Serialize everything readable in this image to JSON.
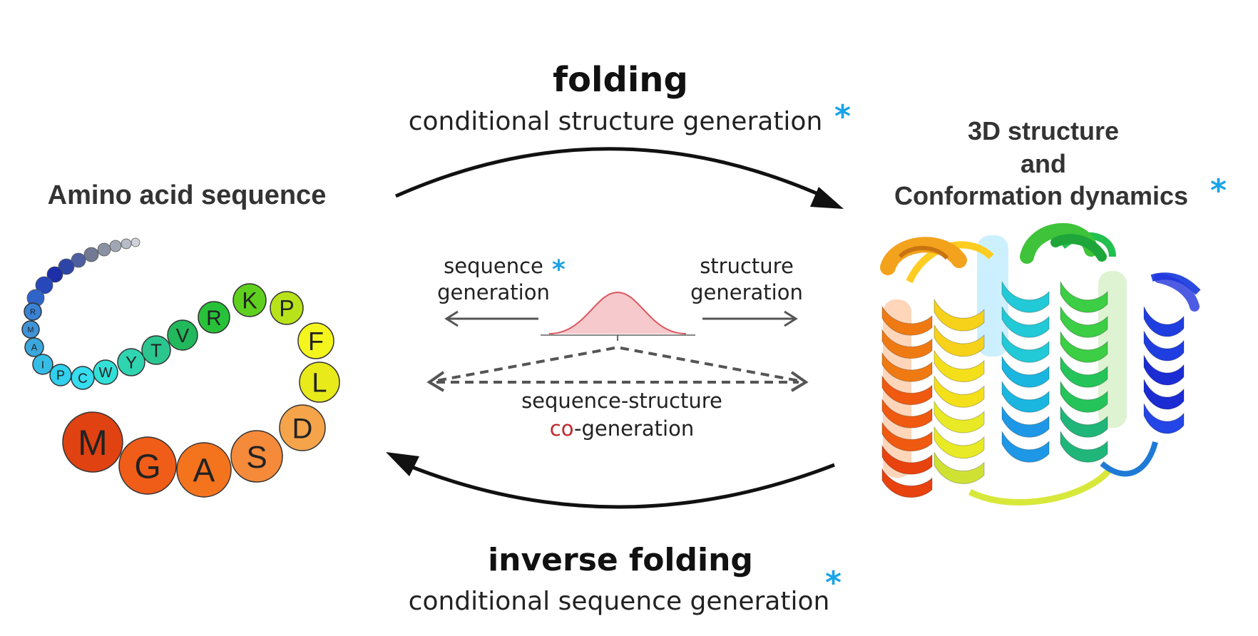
{
  "left_panel": {
    "title": "Amino acid sequence",
    "residues": [
      "R",
      "M",
      "A",
      "I",
      "P",
      "C",
      "W",
      "Y",
      "T",
      "V",
      "R",
      "K",
      "P",
      "F",
      "L",
      "D",
      "S",
      "A",
      "G",
      "M"
    ]
  },
  "right_panel": {
    "title_line1": "3D structure",
    "title_line2": "and",
    "title_line3": "Conformation dynamics",
    "asterisk": "*"
  },
  "top_arrow": {
    "title": "folding",
    "subtitle": "conditional structure generation",
    "asterisk": "*"
  },
  "bottom_arrow": {
    "title": "inverse folding",
    "subtitle": "conditional sequence generation",
    "asterisk": "*"
  },
  "center": {
    "seq_gen_line1": "sequence",
    "seq_gen_asterisk": "*",
    "seq_gen_line2": "generation",
    "struct_gen_line1": "structure",
    "struct_gen_line2": "generation",
    "cogen_line1": "sequence-structure",
    "cogen_prefix": "co",
    "cogen_suffix": "-generation"
  },
  "colors": {
    "asterisk": "#1aa3e8",
    "co_highlight": "#c0272d",
    "gaussian_fill": "#f6c9cc",
    "gaussian_line": "#d9575d"
  }
}
